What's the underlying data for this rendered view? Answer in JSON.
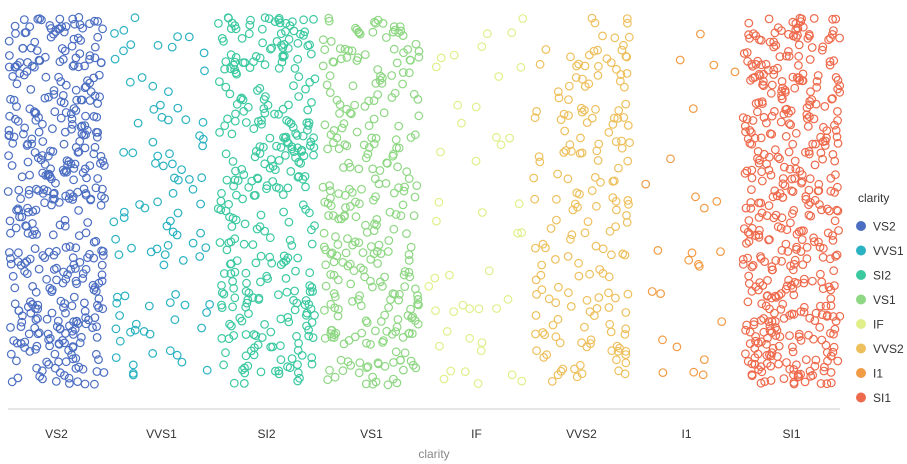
{
  "chart_data": {
    "type": "scatter",
    "subtype": "strip-jitter",
    "x_field": "clarity",
    "xlabel": "clarity",
    "ylabel": "",
    "categories": [
      "VS2",
      "VVS1",
      "SI2",
      "VS1",
      "IF",
      "VVS2",
      "I1",
      "SI1"
    ],
    "point_counts": {
      "VS2": 430,
      "VVS1": 95,
      "SI2": 330,
      "VS1": 300,
      "IF": 45,
      "VVS2": 180,
      "I1": 25,
      "SI1": 470
    },
    "y_axis_shown": false,
    "gridlines": false,
    "marker": "hollow-circle",
    "legend": {
      "title": "clarity",
      "position": "right",
      "entries": [
        {
          "label": "VS2",
          "color": "#4C6EC2"
        },
        {
          "label": "VVS1",
          "color": "#2BB2C2"
        },
        {
          "label": "SI2",
          "color": "#3CC9A0"
        },
        {
          "label": "VS1",
          "color": "#8ED783"
        },
        {
          "label": "IF",
          "color": "#E0EF8A"
        },
        {
          "label": "VVS2",
          "color": "#EEC05D"
        },
        {
          "label": "I1",
          "color": "#F29B45"
        },
        {
          "label": "SI1",
          "color": "#EE6A4C"
        }
      ]
    }
  }
}
